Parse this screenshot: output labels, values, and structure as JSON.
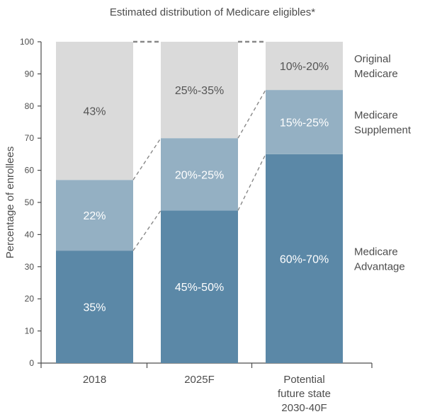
{
  "chart_data": {
    "type": "bar",
    "stacked": true,
    "title": "Estimated distribution of Medicare eligibles*",
    "xlabel": "",
    "ylabel": "Percentage of enrollees",
    "ylim": [
      0,
      100
    ],
    "yticks": [
      0,
      10,
      20,
      30,
      40,
      50,
      60,
      70,
      80,
      90,
      100
    ],
    "categories": [
      [
        "2018"
      ],
      [
        "2025F"
      ],
      [
        "Potential",
        "future state",
        "2030-40F"
      ]
    ],
    "series": [
      {
        "name": [
          "Medicare",
          "Advantage"
        ],
        "color": "#5b88a7",
        "label_color": "#ffffff",
        "values": [
          35,
          47.5,
          65
        ],
        "labels": [
          "35%",
          "45%-50%",
          "60%-70%"
        ]
      },
      {
        "name": [
          "Medicare",
          "Supplement"
        ],
        "color": "#94b0c3",
        "label_color": "#ffffff",
        "values": [
          22,
          22.5,
          20
        ],
        "labels": [
          "22%",
          "20%-25%",
          "15%-25%"
        ]
      },
      {
        "name": [
          "Original",
          "Medicare"
        ],
        "color": "#dadada",
        "label_color": "#555555",
        "values": [
          43,
          30,
          15
        ],
        "labels": [
          "43%",
          "25%-35%",
          "10%-20%"
        ]
      }
    ],
    "legend": "right",
    "connectors": "dashed"
  }
}
